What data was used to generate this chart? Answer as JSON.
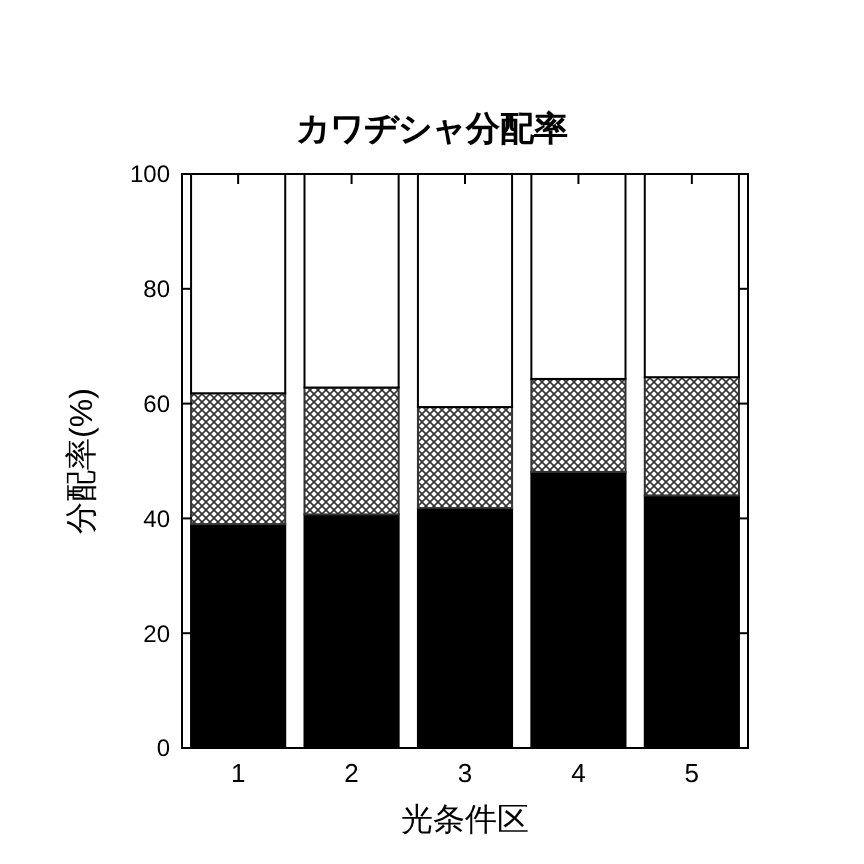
{
  "chart_data": {
    "type": "bar",
    "title": "カワヂシャ分配率",
    "xlabel": "光条件区",
    "ylabel": "分配率(%)",
    "categories": [
      "1",
      "2",
      "3",
      "4",
      "5"
    ],
    "stacked": true,
    "ylim": [
      0,
      100
    ],
    "yticks": [
      0,
      20,
      40,
      60,
      80,
      100
    ],
    "grid": false,
    "series": [
      {
        "color": "#000000",
        "values": [
          39.0,
          40.7,
          41.8,
          48.1,
          44.0
        ]
      },
      {
        "color": "#333333",
        "values": [
          22.8,
          22.1,
          17.6,
          16.2,
          20.6
        ]
      },
      {
        "color": "#ffffff",
        "values": [
          38.2,
          37.2,
          40.6,
          35.7,
          35.4
        ]
      }
    ]
  }
}
